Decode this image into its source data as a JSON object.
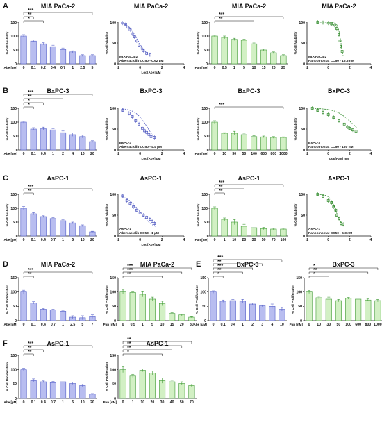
{
  "panel_letters": [
    "A",
    "B",
    "C",
    "D",
    "E",
    "F"
  ],
  "colors": {
    "blue_fill": "#b8bdf0",
    "blue_line": "#5560c8",
    "green_fill": "#d2f0c4",
    "green_line": "#3f9a34",
    "scatter_blue": "#4d57c0",
    "scatter_green": "#2f8a2a"
  },
  "chart_data": [
    {
      "type": "bar",
      "title": "MIA PaCa-2",
      "ylabel": "% Cell Viability",
      "xunit": "Abe [µM]",
      "categories": [
        "0",
        "0.1",
        "0.2",
        "0.4",
        "0.7",
        "1",
        "2.5",
        "5"
      ],
      "values": [
        100,
        82,
        72,
        62,
        52,
        43,
        30,
        30
      ],
      "errors": [
        5,
        4,
        4,
        5,
        5,
        4,
        3,
        3
      ],
      "ylim": [
        0,
        150
      ],
      "yticks": [
        0,
        50,
        100,
        150
      ],
      "color": "blue",
      "brackets": [
        {
          "label": "*",
          "to": 2,
          "depth": 0
        },
        {
          "label": "**",
          "to": 1,
          "depth": 1
        },
        {
          "label": "***",
          "to": 7,
          "depth": 2
        }
      ]
    },
    {
      "type": "scatter",
      "title": "MIA PaCa-2",
      "ylabel": "% Cell Viability",
      "xlabel": "Log[Abe] µM",
      "xlim": [
        -2,
        4
      ],
      "xticks": [
        -2,
        0,
        2,
        4
      ],
      "ylim": [
        0,
        100
      ],
      "yticks": [
        0,
        50,
        100
      ],
      "color": "blue",
      "x": [
        -1.6,
        -1.3,
        -1.1,
        -0.9,
        -0.7,
        -0.5,
        -0.3,
        -0.1,
        0.1,
        0.3,
        0.6,
        0.9
      ],
      "y": [
        98,
        95,
        88,
        82,
        72,
        65,
        55,
        45,
        38,
        32,
        25,
        22
      ],
      "fit": {
        "top": 100,
        "bottom": 15,
        "log_ec50": -0.21,
        "hill": 1
      },
      "annotation": [
        "MIA PaCa-2",
        "Abemaciclib CC50 - 0.62 µM"
      ]
    },
    {
      "type": "bar",
      "title": "MIA PaCa-2",
      "ylabel": "% Cell Viability",
      "xunit": "Pan [nM]",
      "categories": [
        "0",
        "0.5",
        "1",
        "5",
        "10",
        "15",
        "20",
        "25"
      ],
      "values": [
        100,
        95,
        88,
        85,
        72,
        50,
        40,
        30
      ],
      "errors": [
        3,
        5,
        4,
        4,
        3,
        3,
        3,
        3
      ],
      "ylim": [
        0,
        150
      ],
      "yticks": [
        0,
        50,
        100,
        150
      ],
      "color": "green",
      "brackets": [
        {
          "label": "**",
          "to": 4,
          "depth": 0
        },
        {
          "label": "***",
          "to": 7,
          "depth": 1
        }
      ]
    },
    {
      "type": "scatter",
      "title": "MIA PaCa-2",
      "ylabel": "% Cell Viability",
      "xlabel": "",
      "xlim": [
        -2,
        4
      ],
      "xticks": [
        -2,
        0,
        2,
        4
      ],
      "ylim": [
        0,
        100
      ],
      "yticks": [
        0,
        50,
        100
      ],
      "color": "green",
      "x": [
        -1.0,
        -0.5,
        0.0,
        0.3,
        0.6,
        0.8,
        1.0,
        1.1,
        1.2,
        1.3
      ],
      "y": [
        100,
        99,
        98,
        96,
        93,
        85,
        70,
        55,
        42,
        30
      ],
      "fit": {
        "top": 100,
        "bottom": 0,
        "log_ec50": 1.19,
        "hill": 3
      },
      "annotation": [
        "MIA PaCa-2",
        "Panobinostat CC50 - 15.6 nM"
      ]
    },
    {
      "type": "bar",
      "title": "BxPC-3",
      "ylabel": "% Cell Viability",
      "xunit": "Abe [µM]",
      "categories": [
        "0",
        "0.1",
        "0.4",
        "1",
        "2",
        "4",
        "10",
        "20"
      ],
      "values": [
        100,
        75,
        76,
        72,
        62,
        55,
        48,
        30
      ],
      "errors": [
        3,
        5,
        6,
        5,
        6,
        6,
        5,
        3
      ],
      "ylim": [
        0,
        150
      ],
      "yticks": [
        0,
        50,
        100,
        150
      ],
      "color": "blue",
      "brackets": [
        {
          "label": "*",
          "to": 1,
          "depth": 0
        },
        {
          "label": "*",
          "to": 2,
          "depth": 1
        },
        {
          "label": "**",
          "to": 4,
          "depth": 2
        },
        {
          "label": "***",
          "to": 7,
          "depth": 3
        }
      ]
    },
    {
      "type": "scatter",
      "title": "BxPC-3",
      "ylabel": "% Cell Viability",
      "xlabel": "Log[Abe] µM",
      "xlim": [
        -2,
        4
      ],
      "xticks": [
        -2,
        0,
        2,
        4
      ],
      "ylim": [
        0,
        100
      ],
      "yticks": [
        0,
        50,
        100
      ],
      "color": "blue",
      "x": [
        -1.6,
        -1.0,
        -0.7,
        -0.4,
        -0.1,
        0.2,
        0.4,
        0.6,
        0.8,
        1.0,
        1.3
      ],
      "y": [
        95,
        88,
        80,
        70,
        62,
        52,
        46,
        42,
        37,
        32,
        30
      ],
      "fit": {
        "top": 100,
        "bottom": 10,
        "log_ec50": 0.64,
        "hill": 0.8
      },
      "annotation": [
        "BxPC-3",
        "Abemaciclib CC50 - 4.4 µM"
      ]
    },
    {
      "type": "bar",
      "title": "BxPC-3",
      "ylabel": "% Cell Viability",
      "xunit": "Pan [nM]",
      "categories": [
        "0",
        "10",
        "30",
        "50",
        "100",
        "600",
        "800",
        "1000"
      ],
      "values": [
        100,
        60,
        60,
        55,
        48,
        47,
        45,
        45
      ],
      "errors": [
        5,
        2,
        7,
        5,
        3,
        3,
        3,
        2
      ],
      "ylim": [
        0,
        150
      ],
      "yticks": [
        0,
        50,
        100,
        150
      ],
      "color": "green",
      "brackets": [
        {
          "label": "***",
          "to": 7,
          "depth": 0
        }
      ]
    },
    {
      "type": "scatter",
      "title": "BxPC-3",
      "ylabel": "% Cell Viability",
      "xlabel": "Log[Pan] nM",
      "xlim": [
        -2,
        4
      ],
      "xticks": [
        -2,
        0,
        2,
        4
      ],
      "ylim": [
        0,
        100
      ],
      "yticks": [
        0,
        50,
        100
      ],
      "color": "green",
      "x": [
        -1.5,
        -1.0,
        -0.5,
        0,
        0.5,
        1.0,
        1.5,
        1.8,
        2.0,
        2.3,
        2.6
      ],
      "y": [
        100,
        95,
        90,
        85,
        78,
        70,
        62,
        55,
        52,
        48,
        45
      ],
      "fit": {
        "top": 100,
        "bottom": 30,
        "log_ec50": 2.18,
        "hill": 0.6
      },
      "annotation": [
        "BxPC-3",
        "Panobinostat CC50 - 150 nM"
      ]
    },
    {
      "type": "bar",
      "title": "AsPC-1",
      "ylabel": "% Cell Viability",
      "xunit": "Abe [µM]",
      "categories": [
        "0",
        "0.1",
        "0.4",
        "0.7",
        "1",
        "5",
        "10",
        "20"
      ],
      "values": [
        100,
        80,
        70,
        63,
        55,
        47,
        37,
        15
      ],
      "errors": [
        6,
        4,
        3,
        3,
        3,
        3,
        3,
        2
      ],
      "ylim": [
        0,
        150
      ],
      "yticks": [
        0,
        50,
        100,
        150
      ],
      "color": "blue",
      "brackets": [
        {
          "label": "**",
          "to": 1,
          "depth": 0
        },
        {
          "label": "***",
          "to": 7,
          "depth": 1
        }
      ]
    },
    {
      "type": "scatter",
      "title": "AsPC-1",
      "ylabel": "% Cell Viability",
      "xlabel": "Log[Abe] µM",
      "xlim": [
        -2,
        4
      ],
      "xticks": [
        -2,
        0,
        2,
        4
      ],
      "ylim": [
        0,
        100
      ],
      "yticks": [
        0,
        50,
        100
      ],
      "color": "blue",
      "x": [
        -1.6,
        -1.2,
        -0.9,
        -0.6,
        -0.3,
        0,
        0.3,
        0.6,
        0.9,
        1.1,
        1.3
      ],
      "y": [
        96,
        85,
        78,
        70,
        62,
        55,
        50,
        45,
        40,
        35,
        30
      ],
      "fit": {
        "top": 100,
        "bottom": 15,
        "log_ec50": 0.0,
        "hill": 0.7
      },
      "annotation": [
        "AsPC-1",
        "Abemaciclib CC50 - 1 µM"
      ]
    },
    {
      "type": "bar",
      "title": "AsPC-1",
      "ylabel": "% Cell Viability",
      "xunit": "Pan [nM]",
      "categories": [
        "0",
        "1",
        "10",
        "20",
        "30",
        "50",
        "70",
        "100"
      ],
      "values": [
        100,
        60,
        50,
        35,
        30,
        27,
        25,
        25
      ],
      "errors": [
        5,
        5,
        9,
        7,
        6,
        4,
        3,
        3
      ],
      "ylim": [
        0,
        150
      ],
      "yticks": [
        0,
        50,
        100,
        150
      ],
      "color": "green",
      "brackets": [
        {
          "label": "**",
          "to": 1,
          "depth": 0
        },
        {
          "label": "**",
          "to": 3,
          "depth": 1
        },
        {
          "label": "***",
          "to": 7,
          "depth": 2
        }
      ]
    },
    {
      "type": "scatter",
      "title": "AsPC-1",
      "ylabel": "% Cell Viability",
      "xlabel": "",
      "xlim": [
        -2,
        4
      ],
      "xticks": [
        -2,
        0,
        2,
        4
      ],
      "ylim": [
        0,
        100
      ],
      "yticks": [
        0,
        50,
        100
      ],
      "color": "green",
      "x": [
        -1.0,
        -0.5,
        0,
        0.3,
        0.5,
        0.7,
        0.8,
        1.0,
        1.2,
        1.4
      ],
      "y": [
        100,
        95,
        85,
        80,
        70,
        62,
        50,
        42,
        30,
        28
      ],
      "fit": {
        "top": 100,
        "bottom": 20,
        "log_ec50": 0.72,
        "hill": 1.5
      },
      "annotation": [
        "AsPC-1",
        "Panobinostat CC50 - 5.3 nM"
      ]
    },
    {
      "type": "bar",
      "title": "MIA PaCa-2",
      "ylabel": "% Cell Proliferation",
      "xunit": "Abe [µM]",
      "categories": [
        "0",
        "0.1",
        "0.4",
        "0.7",
        "1",
        "2.5",
        "5",
        "7"
      ],
      "values": [
        100,
        62,
        40,
        38,
        33,
        12,
        10,
        14
      ],
      "errors": [
        6,
        4,
        2,
        2,
        3,
        5,
        7,
        6
      ],
      "ylim": [
        0,
        150
      ],
      "yticks": [
        0,
        50,
        100,
        150
      ],
      "color": "blue",
      "brackets": [
        {
          "label": "**",
          "to": 1,
          "depth": 0
        },
        {
          "label": "***",
          "to": 7,
          "depth": 1
        }
      ]
    },
    {
      "type": "bar",
      "title": "MIA PaCa-2",
      "ylabel": "% Cell Proliferation",
      "xunit": "Pan [nM]",
      "categories": [
        "0",
        "0.5",
        "1",
        "5",
        "10",
        "15",
        "20",
        "30"
      ],
      "values": [
        100,
        98,
        92,
        75,
        60,
        25,
        20,
        12
      ],
      "errors": [
        7,
        2,
        9,
        7,
        8,
        3,
        3,
        2
      ],
      "ylim": [
        0,
        150
      ],
      "yticks": [
        0,
        50,
        100,
        150
      ],
      "color": "green",
      "brackets": [
        {
          "label": "**",
          "to": 4,
          "depth": 0
        },
        {
          "label": "***",
          "to": 6,
          "depth": 1
        },
        {
          "label": "***",
          "to": 7,
          "depth": 2
        }
      ]
    },
    {
      "type": "bar",
      "title": "BxPC-3",
      "ylabel": "% Cell Proliferation",
      "xunit": "Abe [µM]",
      "categories": [
        "0",
        "0.1",
        "0.4",
        "1",
        "2",
        "3",
        "4",
        "10"
      ],
      "values": [
        100,
        68,
        70,
        68,
        58,
        52,
        50,
        40
      ],
      "errors": [
        4,
        4,
        4,
        6,
        4,
        3,
        8,
        6
      ],
      "ylim": [
        0,
        150
      ],
      "yticks": [
        0,
        50,
        100,
        150
      ],
      "color": "blue",
      "brackets": [
        {
          "label": "*",
          "to": 1,
          "depth": 0
        },
        {
          "label": "**",
          "to": 3,
          "depth": 1
        },
        {
          "label": "***",
          "to": 4,
          "depth": 2
        },
        {
          "label": "**",
          "to": 5,
          "depth": 3
        },
        {
          "label": "***",
          "to": 7,
          "depth": 4
        }
      ]
    },
    {
      "type": "bar",
      "title": "BxPC-3",
      "ylabel": "% Cell Proliferation",
      "xunit": "Pan [nM]",
      "categories": [
        "0",
        "10",
        "30",
        "50",
        "100",
        "600",
        "800",
        "1000"
      ],
      "values": [
        100,
        80,
        75,
        70,
        78,
        75,
        72,
        70
      ],
      "errors": [
        5,
        5,
        7,
        4,
        3,
        4,
        4,
        4
      ],
      "ylim": [
        0,
        150
      ],
      "yticks": [
        0,
        50,
        100,
        150
      ],
      "color": "green",
      "brackets": [
        {
          "label": "*",
          "to": 2,
          "depth": 0
        },
        {
          "label": "**",
          "to": 6,
          "depth": 1
        },
        {
          "label": "*",
          "to": 7,
          "depth": 2
        }
      ]
    },
    {
      "type": "bar",
      "title": "AsPC-1",
      "ylabel": "% Cell Proliferation",
      "xunit": "Abe [µM]",
      "categories": [
        "0",
        "0.1",
        "0.4",
        "0.7",
        "1",
        "5",
        "10",
        "20"
      ],
      "values": [
        100,
        62,
        58,
        55,
        58,
        52,
        45,
        15
      ],
      "errors": [
        5,
        6,
        3,
        4,
        6,
        5,
        4,
        2
      ],
      "ylim": [
        0,
        150
      ],
      "yticks": [
        0,
        50,
        100,
        150
      ],
      "color": "blue",
      "brackets": [
        {
          "label": "**",
          "to": 1,
          "depth": 0
        },
        {
          "label": "**",
          "to": 2,
          "depth": 1
        },
        {
          "label": "***",
          "to": 7,
          "depth": 2
        }
      ]
    },
    {
      "type": "bar",
      "title": "AsPC-1",
      "ylabel": "% Cell Proliferation",
      "xunit": "Pan [nM]",
      "categories": [
        "0",
        "1",
        "10",
        "20",
        "30",
        "40",
        "50",
        "70"
      ],
      "values": [
        100,
        78,
        98,
        88,
        62,
        58,
        52,
        45
      ],
      "errors": [
        10,
        6,
        5,
        7,
        9,
        5,
        6,
        4
      ],
      "ylim": [
        0,
        150
      ],
      "yticks": [
        0,
        50,
        100,
        150
      ],
      "color": "green",
      "brackets": [
        {
          "label": "*",
          "to": 4,
          "depth": 0
        },
        {
          "label": "**",
          "to": 5,
          "depth": 1
        },
        {
          "label": "**",
          "to": 6,
          "depth": 2
        },
        {
          "label": "**",
          "to": 7,
          "depth": 3
        }
      ]
    }
  ]
}
